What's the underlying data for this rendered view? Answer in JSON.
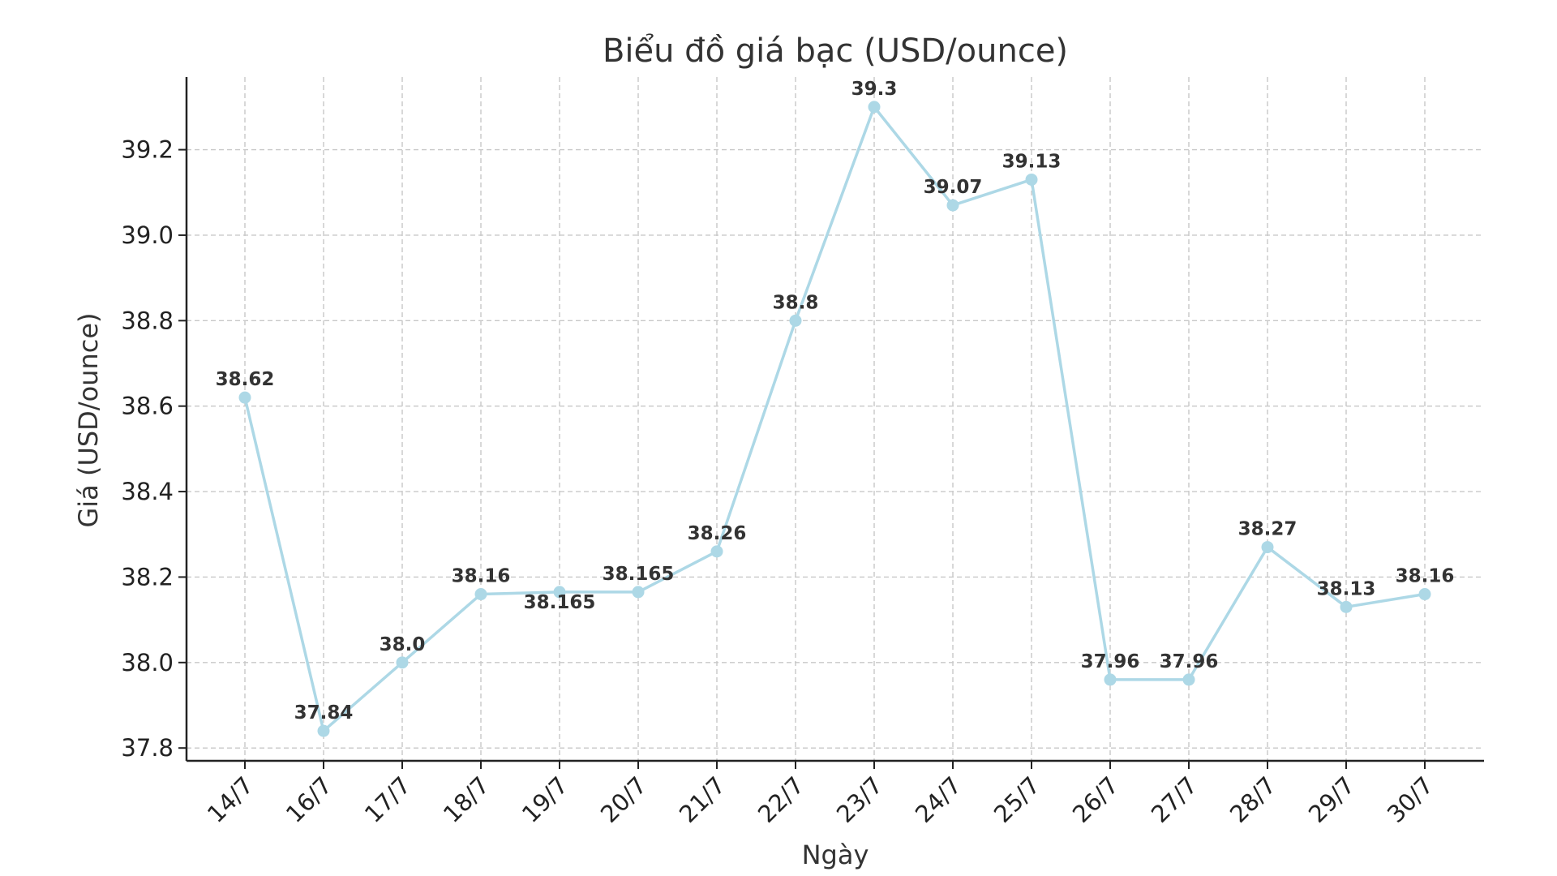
{
  "chart_data": {
    "type": "line",
    "title": "Biểu đồ giá bạc (USD/ounce)",
    "xlabel": "Ngày",
    "ylabel": "Giá (USD/ounce)",
    "categories": [
      "14/7",
      "16/7",
      "17/7",
      "18/7",
      "19/7",
      "20/7",
      "21/7",
      "22/7",
      "23/7",
      "24/7",
      "25/7",
      "26/7",
      "27/7",
      "28/7",
      "29/7",
      "30/7"
    ],
    "series": [
      {
        "values": [
          38.62,
          37.84,
          38.0,
          38.16,
          38.165,
          38.165,
          38.26,
          38.8,
          39.3,
          39.07,
          39.13,
          37.96,
          37.96,
          38.27,
          38.13,
          38.16
        ],
        "labels": [
          "38.62",
          "37.84",
          "38.0",
          "38.16",
          "38.165",
          "38.165",
          "38.26",
          "38.8",
          "39.3",
          "39.07",
          "39.13",
          "37.96",
          "37.96",
          "38.27",
          "38.13",
          "38.16"
        ],
        "color": "#add8e6"
      }
    ],
    "yticks": [
      "37.8",
      "38.0",
      "38.2",
      "38.4",
      "38.6",
      "38.8",
      "39.0",
      "39.2"
    ],
    "ylim": [
      37.77,
      39.37
    ],
    "grid": true,
    "legend": "none"
  }
}
